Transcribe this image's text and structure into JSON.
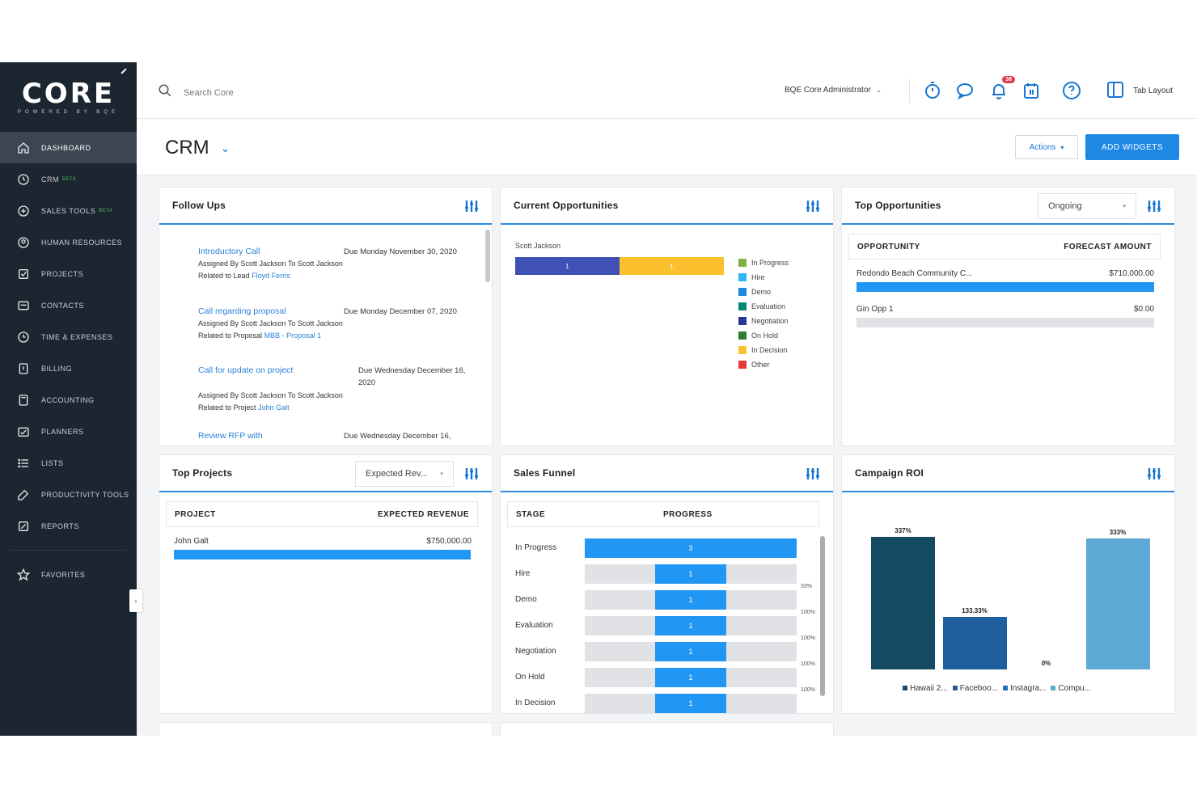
{
  "logo": {
    "word": "CORE",
    "tagline": "POWERED BY BQE"
  },
  "sidebar": {
    "items": [
      {
        "label": "Dashboard",
        "icon": "home-icon",
        "active": true
      },
      {
        "label": "CRM",
        "icon": "crm-icon",
        "beta": "BETA"
      },
      {
        "label": "Sales Tools",
        "icon": "sales-tools-icon",
        "beta": "BETA"
      },
      {
        "label": "Human Resources",
        "icon": "human-resources-icon"
      },
      {
        "label": "Projects",
        "icon": "projects-icon"
      },
      {
        "label": "Contacts",
        "icon": "contacts-icon"
      },
      {
        "label": "Time & Expenses",
        "icon": "time-expenses-icon"
      },
      {
        "label": "Billing",
        "icon": "billing-icon"
      },
      {
        "label": "Accounting",
        "icon": "accounting-icon"
      },
      {
        "label": "Planners",
        "icon": "planners-icon"
      },
      {
        "label": "Lists",
        "icon": "lists-icon"
      },
      {
        "label": "Productivity Tools",
        "icon": "productivity-tools-icon"
      },
      {
        "label": "Reports",
        "icon": "reports-icon"
      }
    ],
    "favorites": {
      "label": "Favorites",
      "icon": "star-icon"
    }
  },
  "topbar": {
    "search_placeholder": "Search Core",
    "user": "BQE Core Administrator",
    "notification_count": "38",
    "view_label": "Tab Layout"
  },
  "page": {
    "title": "CRM",
    "actions_label": "Actions",
    "add_widgets_label": "ADD WIDGETS"
  },
  "follow_ups": {
    "title": "Follow Ups",
    "items": [
      {
        "subject": "Introductory Call",
        "due": "Due Monday November 30, 2020",
        "assigned": "Assigned By Scott Jackson To Scott Jackson",
        "related_prefix": "Related to Lead",
        "related_ref": "Floyd Ferris"
      },
      {
        "subject": "Call regarding proposal",
        "due": "Due Monday December 07, 2020",
        "assigned": "Assigned By Scott Jackson To Scott Jackson",
        "related_prefix": "Related to Proposal",
        "related_ref": "MBB - Proposal 1"
      },
      {
        "subject": "Call for update on project",
        "due": "Due Wednesday December 16, 2020",
        "assigned": "Assigned By Scott Jackson To Scott Jackson",
        "related_prefix": "Related to Project",
        "related_ref": "John Galt"
      },
      {
        "subject": "Review RFP with",
        "due": "Due Wednesday December 16,",
        "assigned": "",
        "related_prefix": "",
        "related_ref": ""
      }
    ]
  },
  "current_opportunities": {
    "title": "Current Opportunities",
    "owner": "Scott Jackson",
    "segments": [
      {
        "label": "1",
        "value": 1,
        "color": "#3f51b5"
      },
      {
        "label": "1",
        "value": 1,
        "color": "#fbc02d"
      }
    ],
    "legend": [
      {
        "label": "In Progress",
        "color": "#7cb342"
      },
      {
        "label": "Hire",
        "color": "#29b6f6"
      },
      {
        "label": "Demo",
        "color": "#1e88e5"
      },
      {
        "label": "Evaluation",
        "color": "#00897b"
      },
      {
        "label": "Negotiation",
        "color": "#283593"
      },
      {
        "label": "On Hold",
        "color": "#2e7d32"
      },
      {
        "label": "In Decision",
        "color": "#fbc02d"
      },
      {
        "label": "Other",
        "color": "#e53935"
      }
    ]
  },
  "top_opportunities": {
    "title": "Top Opportunities",
    "filter": "Ongoing",
    "col_left": "OPPORTUNITY",
    "col_right": "FORECAST AMOUNT",
    "rows": [
      {
        "name": "Redondo Beach Community C...",
        "amount": "$710,000.00",
        "fraction": 1.0
      },
      {
        "name": "Gin Opp 1",
        "amount": "$0.00",
        "fraction": 0.0
      }
    ]
  },
  "top_projects": {
    "title": "Top Projects",
    "filter": "Expected Rev...",
    "col_left": "PROJECT",
    "col_right": "EXPECTED REVENUE",
    "rows": [
      {
        "name": "John Galt",
        "amount": "$750,000.00",
        "fraction": 1.0
      }
    ]
  },
  "sales_funnel": {
    "title": "Sales Funnel",
    "col_left": "STAGE",
    "col_right": "PROGRESS",
    "stages": [
      {
        "stage": "In Progress",
        "count": "3",
        "fraction": 1.0,
        "pct": ""
      },
      {
        "stage": "Hire",
        "count": "1",
        "fraction": 0.333,
        "pct": "33%"
      },
      {
        "stage": "Demo",
        "count": "1",
        "fraction": 0.333,
        "pct": "100%"
      },
      {
        "stage": "Evaluation",
        "count": "1",
        "fraction": 0.333,
        "pct": "100%"
      },
      {
        "stage": "Negotiation",
        "count": "1",
        "fraction": 0.333,
        "pct": "100%"
      },
      {
        "stage": "On Hold",
        "count": "1",
        "fraction": 0.333,
        "pct": "100%"
      },
      {
        "stage": "In Decision",
        "count": "1",
        "fraction": 0.333,
        "pct": "100%"
      }
    ]
  },
  "campaign_roi": {
    "title": "Campaign ROI",
    "chart_data": {
      "type": "bar",
      "categories": [
        "Hawaii 2...",
        "Faceboo...",
        "Instagra...",
        "Compu..."
      ],
      "values": [
        337,
        133.33,
        0,
        333
      ],
      "value_labels": [
        "337%",
        "133.33%",
        "0%",
        "333%"
      ],
      "colors": [
        "#154a63",
        "#1f5fa0",
        "#2a6bb5",
        "#5ea8d6"
      ],
      "ylim": [
        0,
        360
      ],
      "legend_position": "bottom"
    }
  }
}
